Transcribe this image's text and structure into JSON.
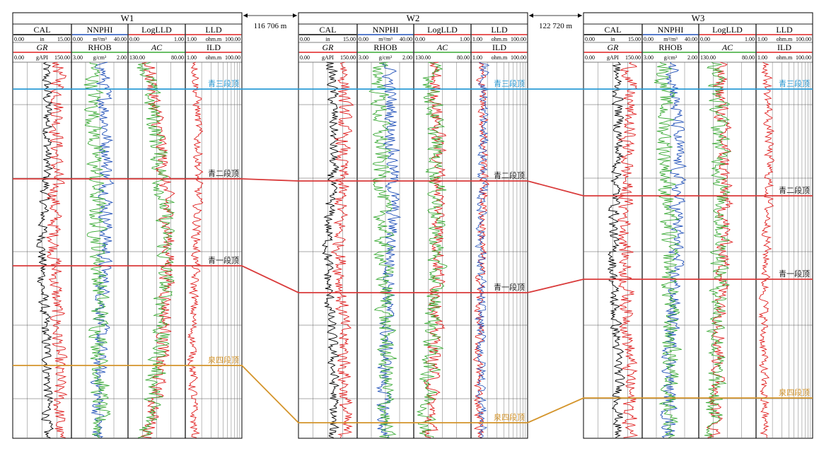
{
  "wells": [
    {
      "name": "W1",
      "header_top": [
        {
          "name": "CAL",
          "left": "0.00",
          "unit": "in",
          "right": "15.00"
        },
        {
          "name": "NNPHI",
          "left": "0.00",
          "unit": "m³/m³",
          "right": "40.00"
        },
        {
          "name": "LogLLD",
          "left": "0.00",
          "unit": "",
          "right": "1.00"
        },
        {
          "name": "LLD",
          "left": "1.00",
          "unit": "ohm.m",
          "right": "100.00"
        }
      ],
      "header_bottom": [
        {
          "name": "GR",
          "left": "0.00",
          "unit": "gAPI",
          "right": "150.00"
        },
        {
          "name": "RHOB",
          "left": "3.00",
          "unit": "g/cm³",
          "right": "2.00"
        },
        {
          "name": "AC",
          "left": "130.00",
          "unit": "",
          "right": "80.00"
        },
        {
          "name": "ILD",
          "left": "1.00",
          "unit": "ohm.m",
          "right": "100.00"
        }
      ]
    },
    {
      "name": "W2",
      "header_top": [
        {
          "name": "CAL",
          "left": "0.00",
          "unit": "in",
          "right": "15.00"
        },
        {
          "name": "NNPHI",
          "left": "0.00",
          "unit": "m³/m³",
          "right": "40.00"
        },
        {
          "name": "LogLLD",
          "left": "0.00",
          "unit": "",
          "right": "1.00"
        },
        {
          "name": "LLD",
          "left": "1.00",
          "unit": "ohm.m",
          "right": "100.00"
        }
      ],
      "header_bottom": [
        {
          "name": "GR",
          "left": "0.00",
          "unit": "gAPI",
          "right": "150.00"
        },
        {
          "name": "RHOB",
          "left": "3.00",
          "unit": "g/cm³",
          "right": "2.00"
        },
        {
          "name": "AC",
          "left": "130.00",
          "unit": "",
          "right": "80.00"
        },
        {
          "name": "ILD",
          "left": "1.00",
          "unit": "ohm.m",
          "right": "100.00"
        }
      ]
    },
    {
      "name": "W3",
      "header_top": [
        {
          "name": "CAL",
          "left": "0.00",
          "unit": "in",
          "right": "15.00"
        },
        {
          "name": "NNPHI",
          "left": "0.00",
          "unit": "m³/m³",
          "right": "40.00"
        },
        {
          "name": "LogLLD",
          "left": "0.00",
          "unit": "",
          "right": "1.00"
        },
        {
          "name": "LLD",
          "left": "1.00",
          "unit": "ohm.m",
          "right": "100.00"
        }
      ],
      "header_bottom": [
        {
          "name": "GR",
          "left": "0.00",
          "unit": "gAPI",
          "right": "150.00"
        },
        {
          "name": "RHOB",
          "left": "3.00",
          "unit": "g/cm³",
          "right": "2.00"
        },
        {
          "name": "AC",
          "left": "130.00",
          "unit": "",
          "right": "80.00"
        },
        {
          "name": "ILD",
          "left": "1.00",
          "unit": "ohm.m",
          "right": "100.00"
        }
      ]
    }
  ],
  "distances": [
    "116 706 m",
    "122 720 m"
  ],
  "horizons": [
    {
      "label": "青三段顶",
      "color": "#2b9bd6"
    },
    {
      "label": "青二段顶",
      "color": "#d93a3a"
    },
    {
      "label": "青一段顶",
      "color": "#d93a3a"
    },
    {
      "label": "泉四段顶",
      "color": "#d4942a"
    }
  ],
  "curve_colors": {
    "cal": "#000000",
    "gr": "#e02020",
    "nnphi": "#1f4fb8",
    "rhob": "#3aaa35",
    "logld": "#e02020",
    "ac": "#3aaa35",
    "lld": "#e02020",
    "ild": "#e02020"
  }
}
